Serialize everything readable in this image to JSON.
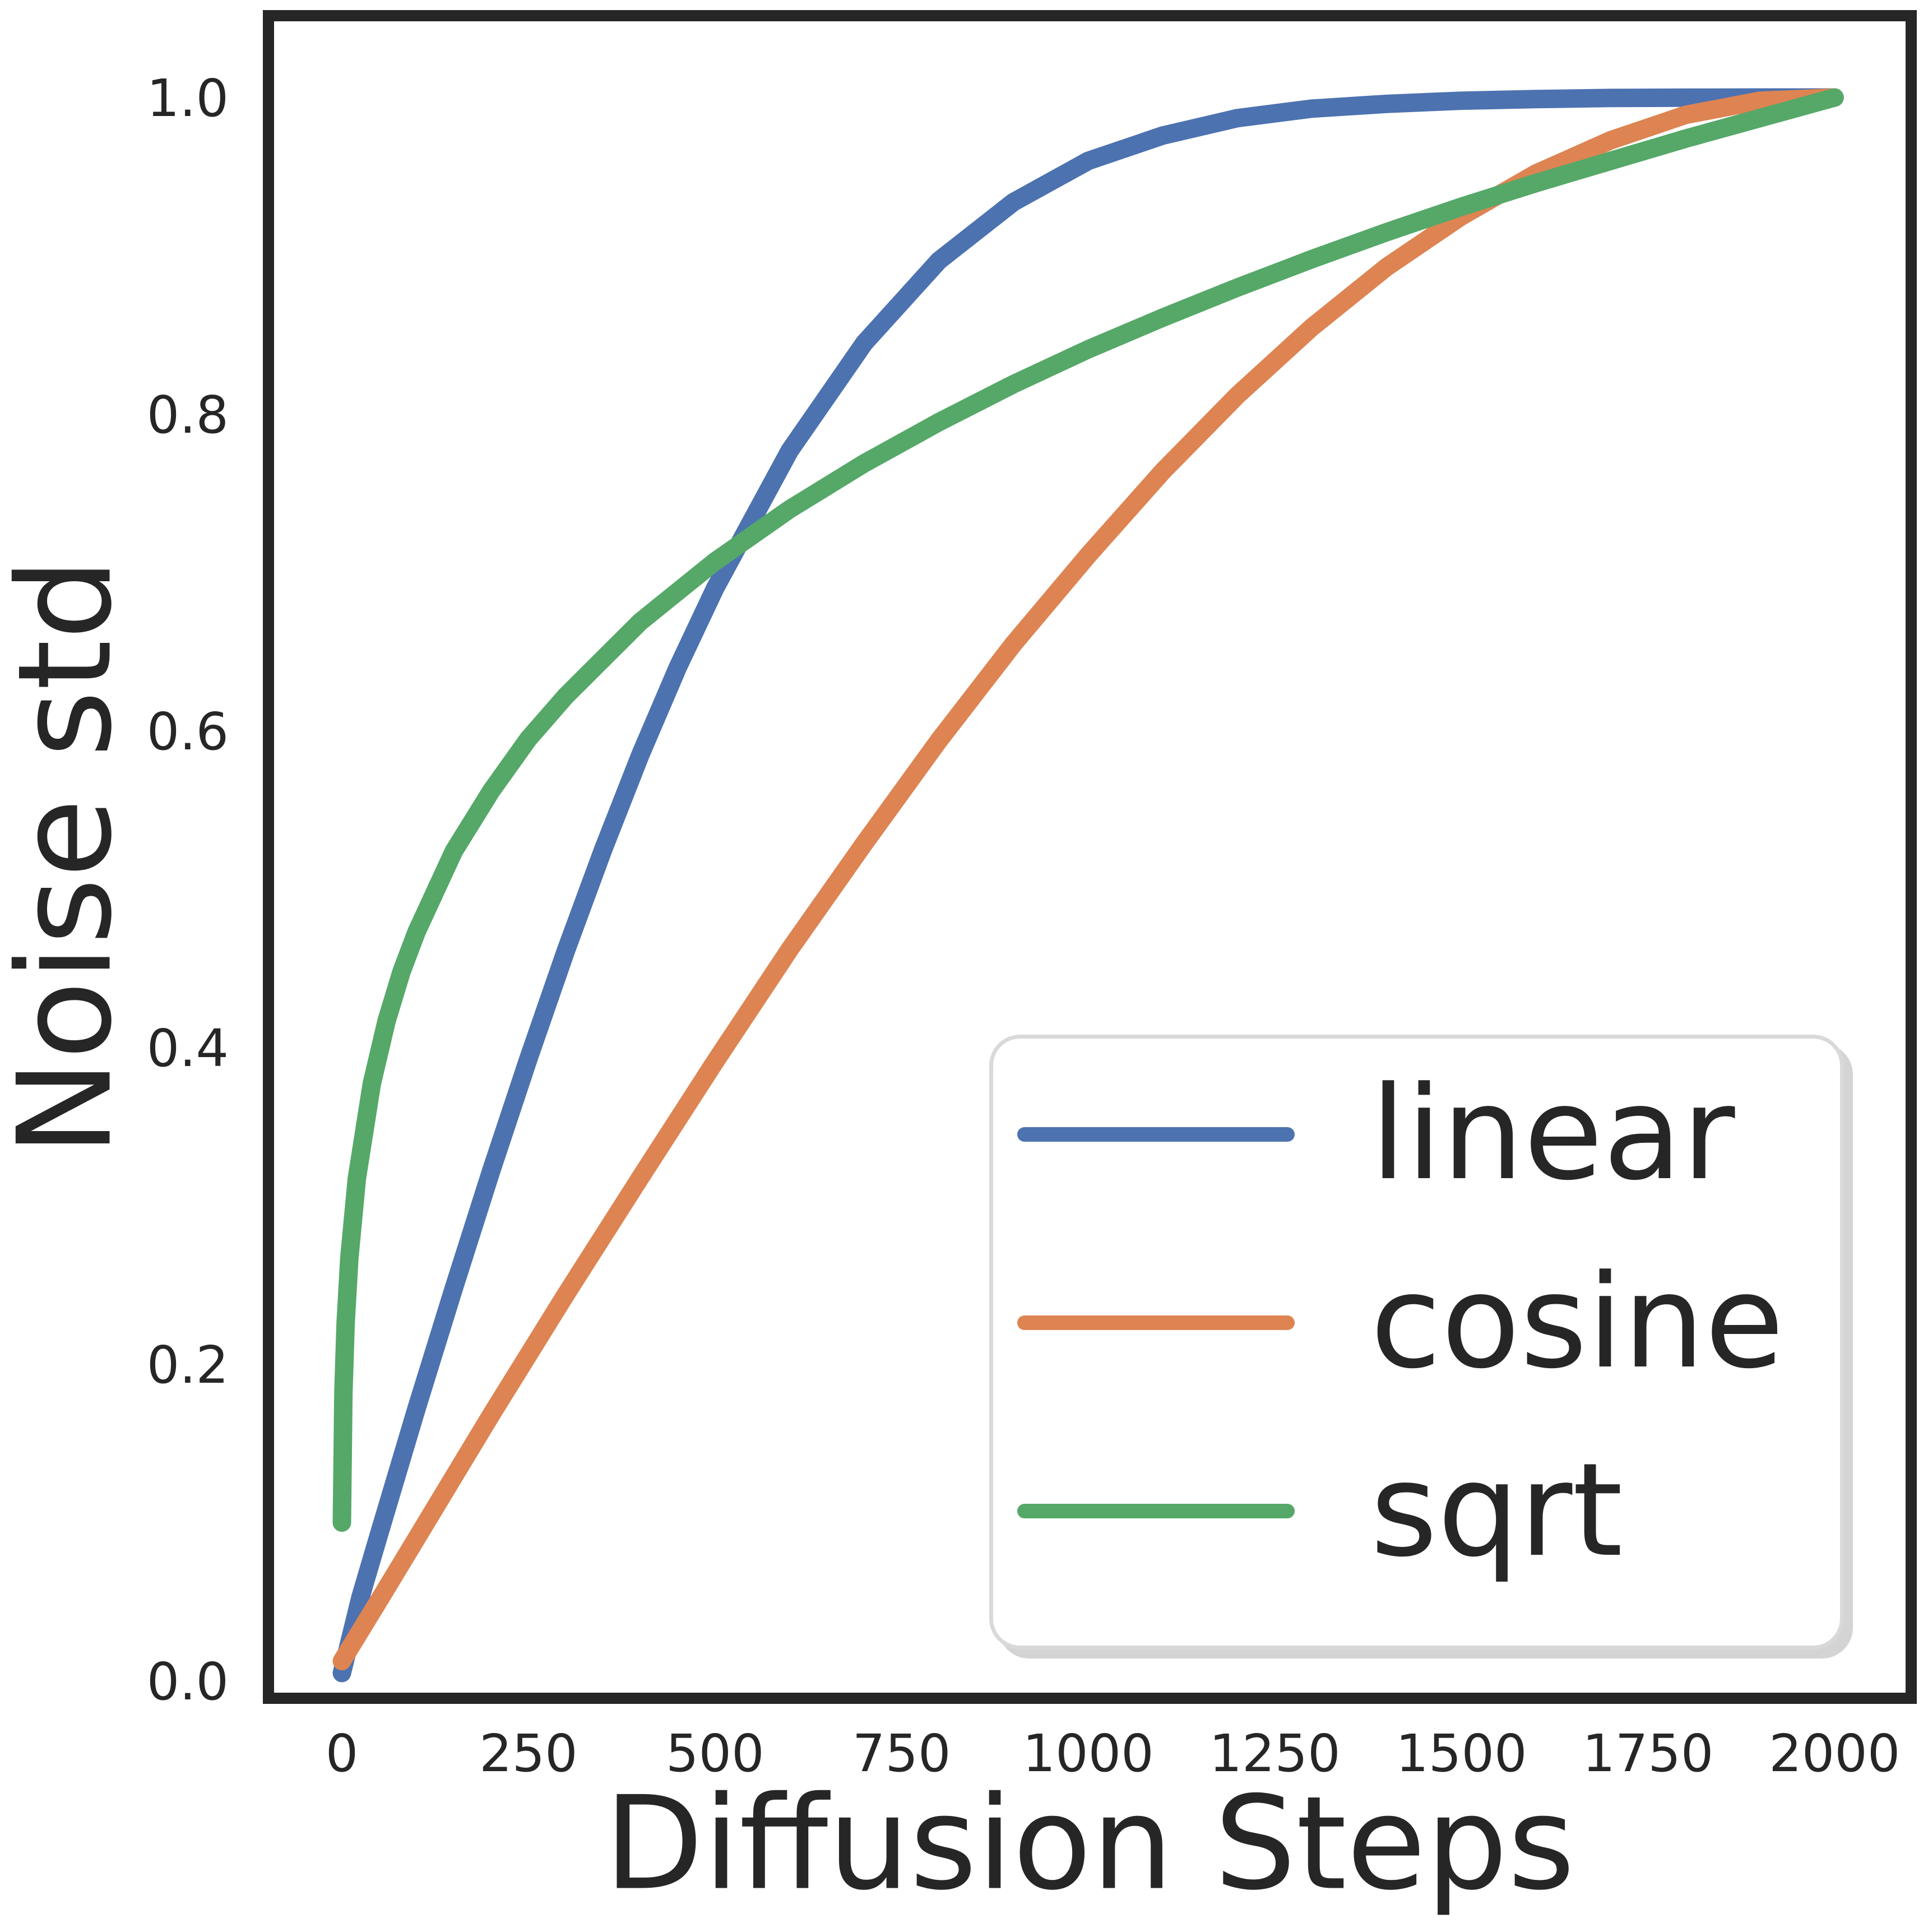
{
  "chart_data": {
    "type": "line",
    "title": "",
    "xlabel": "Diffusion Steps",
    "ylabel": "Noise std",
    "xlim": [
      -100,
      2100
    ],
    "ylim": [
      -0.05,
      1.06
    ],
    "grid": false,
    "x_ticks": [
      0,
      250,
      500,
      750,
      1000,
      1250,
      1500,
      1750,
      2000
    ],
    "y_ticks": [
      0.0,
      0.2,
      0.4,
      0.6,
      0.8,
      1.0
    ],
    "legend": {
      "position": "lower right",
      "entries": [
        "linear",
        "cosine",
        "sqrt"
      ]
    },
    "axis_color": "#262626",
    "series": [
      {
        "name": "linear",
        "color": "#4C72B0",
        "points": [
          [
            0,
            0.005
          ],
          [
            25,
            0.053
          ],
          [
            50,
            0.093
          ],
          [
            100,
            0.172
          ],
          [
            150,
            0.248
          ],
          [
            200,
            0.322
          ],
          [
            250,
            0.393
          ],
          [
            300,
            0.461
          ],
          [
            350,
            0.525
          ],
          [
            400,
            0.585
          ],
          [
            450,
            0.64
          ],
          [
            500,
            0.69
          ],
          [
            600,
            0.777
          ],
          [
            700,
            0.845
          ],
          [
            800,
            0.897
          ],
          [
            900,
            0.934
          ],
          [
            1000,
            0.96
          ],
          [
            1100,
            0.976
          ],
          [
            1200,
            0.987
          ],
          [
            1300,
            0.993
          ],
          [
            1400,
            0.996
          ],
          [
            1500,
            0.998
          ],
          [
            1600,
            0.999
          ],
          [
            1700,
            0.9997
          ],
          [
            1800,
            0.9999
          ],
          [
            1900,
            1.0
          ],
          [
            2000,
            1.0
          ]
        ]
      },
      {
        "name": "cosine",
        "color": "#DD8452",
        "points": [
          [
            0,
            0.0125
          ],
          [
            50,
            0.051
          ],
          [
            100,
            0.09
          ],
          [
            150,
            0.129
          ],
          [
            200,
            0.168
          ],
          [
            250,
            0.206
          ],
          [
            300,
            0.244
          ],
          [
            400,
            0.318
          ],
          [
            500,
            0.391
          ],
          [
            600,
            0.462
          ],
          [
            700,
            0.529
          ],
          [
            800,
            0.594
          ],
          [
            900,
            0.655
          ],
          [
            1000,
            0.711
          ],
          [
            1100,
            0.764
          ],
          [
            1200,
            0.812
          ],
          [
            1300,
            0.855
          ],
          [
            1400,
            0.893
          ],
          [
            1500,
            0.925
          ],
          [
            1600,
            0.952
          ],
          [
            1700,
            0.973
          ],
          [
            1800,
            0.989
          ],
          [
            1900,
            0.998
          ],
          [
            2000,
            1.0
          ]
        ]
      },
      {
        "name": "sqrt",
        "color": "#55A868",
        "points": [
          [
            0,
            0.1
          ],
          [
            2,
            0.182
          ],
          [
            5,
            0.226
          ],
          [
            10,
            0.267
          ],
          [
            20,
            0.317
          ],
          [
            40,
            0.377
          ],
          [
            60,
            0.417
          ],
          [
            80,
            0.448
          ],
          [
            100,
            0.473
          ],
          [
            150,
            0.524
          ],
          [
            200,
            0.562
          ],
          [
            250,
            0.595
          ],
          [
            300,
            0.622
          ],
          [
            400,
            0.669
          ],
          [
            500,
            0.707
          ],
          [
            600,
            0.74
          ],
          [
            700,
            0.769
          ],
          [
            800,
            0.795
          ],
          [
            900,
            0.819
          ],
          [
            1000,
            0.841
          ],
          [
            1100,
            0.861
          ],
          [
            1200,
            0.88
          ],
          [
            1300,
            0.898
          ],
          [
            1400,
            0.915
          ],
          [
            1500,
            0.931
          ],
          [
            1600,
            0.946
          ],
          [
            1700,
            0.96
          ],
          [
            1800,
            0.974
          ],
          [
            1900,
            0.987
          ],
          [
            2000,
            1.0
          ]
        ]
      }
    ]
  }
}
